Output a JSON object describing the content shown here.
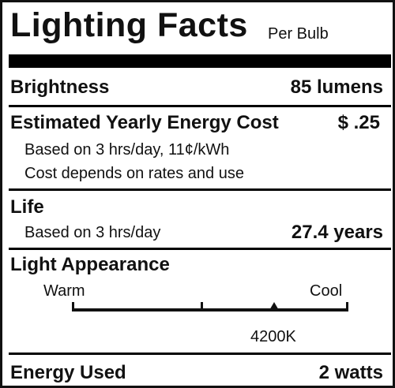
{
  "title": "Lighting Facts",
  "per_bulb": "Per Bulb",
  "brightness": {
    "label": "Brightness",
    "value": "85 lumens"
  },
  "cost": {
    "label": "Estimated Yearly Energy Cost",
    "value": "$ .25",
    "note1": "Based on 3 hrs/day, 11¢/kWh",
    "note2": "Cost depends on rates and use"
  },
  "life": {
    "label": "Life",
    "note": "Based on 3 hrs/day",
    "value": "27.4 years"
  },
  "appearance": {
    "label": "Light Appearance",
    "warm": "Warm",
    "cool": "Cool",
    "kelvin": "4200K",
    "position": 0.73
  },
  "energy": {
    "label": "Energy Used",
    "value": "2 watts"
  }
}
